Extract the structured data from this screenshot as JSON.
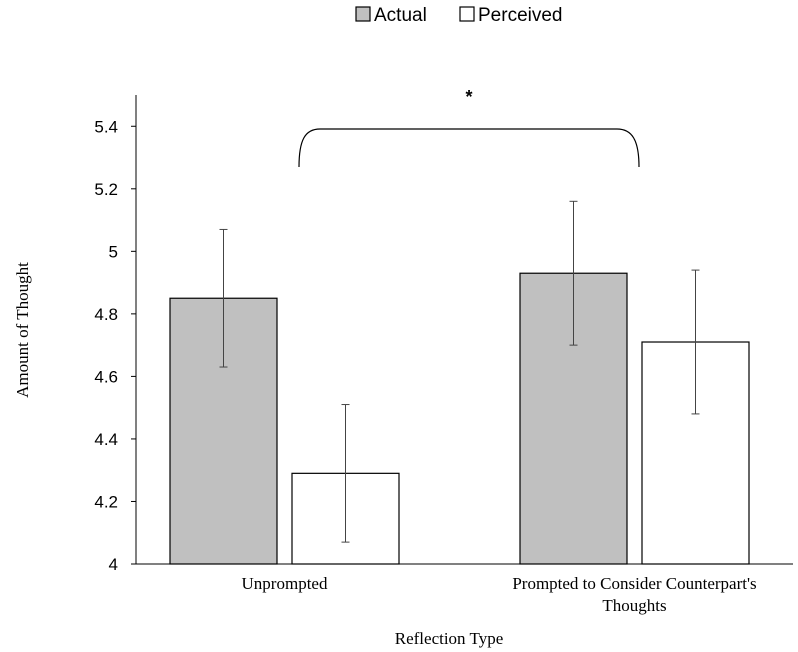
{
  "chart_data": {
    "type": "bar",
    "title": "",
    "xlabel": "Reflection Type",
    "ylabel": "Amount of Thought",
    "ylim": [
      4,
      5.5
    ],
    "yticks": [
      "4",
      "4.2",
      "4.4",
      "4.6",
      "4.8",
      "5",
      "5.2",
      "5.4"
    ],
    "categories": [
      [
        "Unprompted"
      ],
      [
        "Prompted to Consider Counterpart's",
        "Thoughts"
      ]
    ],
    "series": [
      {
        "name": "Actual",
        "color": "#c0c0c0",
        "values": [
          4.85,
          4.93
        ],
        "error_low": [
          4.63,
          4.7
        ],
        "error_high": [
          5.07,
          5.16
        ]
      },
      {
        "name": "Perceived",
        "color": "#ffffff",
        "values": [
          4.29,
          4.71
        ],
        "error_low": [
          4.07,
          4.48
        ],
        "error_high": [
          4.51,
          4.94
        ]
      }
    ],
    "legend_position": "top-center",
    "grid": false,
    "annotation": {
      "text": "*",
      "type": "bracket",
      "from": "Unprompted",
      "to": "Prompted to Consider Counterpart's Thoughts"
    }
  }
}
